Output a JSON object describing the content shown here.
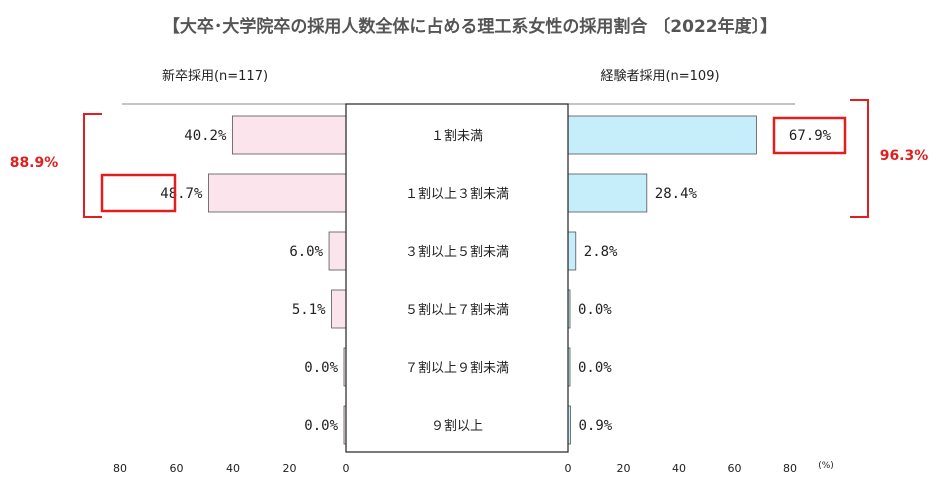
{
  "title": "【大卒･大学院卒の採用人数全体に占める理工系女性の採用割合 〔2022年度〕】",
  "chart_data": {
    "type": "bar",
    "categories": [
      "１割未満",
      "１割以上３割未満",
      "３割以上５割未満",
      "５割以上７割未満",
      "７割以上９割未満",
      "９割以上"
    ],
    "series": [
      {
        "name": "新卒採用(n=117)",
        "values": [
          40.2,
          48.7,
          6.0,
          5.1,
          0.0,
          0.0
        ],
        "labels": [
          "40.2%",
          "48.7%",
          "6.0%",
          "5.1%",
          "0.0%",
          "0.0%"
        ],
        "color": "#fce4ec"
      },
      {
        "name": "経験者採用(n=109)",
        "values": [
          67.9,
          28.4,
          2.8,
          0.0,
          0.0,
          0.9
        ],
        "labels": [
          "67.9%",
          "28.4%",
          "2.8%",
          "0.0%",
          "0.0%",
          "0.9%"
        ],
        "color": "#c5eefa"
      }
    ],
    "xlim": [
      0,
      80
    ],
    "left_ticks": [
      "80",
      "60",
      "40",
      "20",
      "0"
    ],
    "right_ticks": [
      "0",
      "20",
      "40",
      "60",
      "80"
    ],
    "unit_label": "(%)",
    "annotations": {
      "left_total": "88.9%",
      "right_total": "96.3%",
      "highlight_color": "#e02020"
    }
  }
}
